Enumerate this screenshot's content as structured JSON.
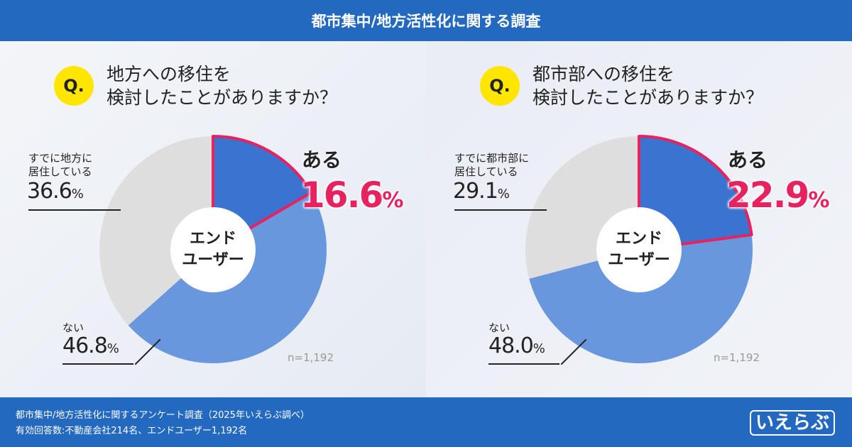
{
  "header": {
    "title": "都市集中/地方活性化に関する調査"
  },
  "colors": {
    "highlight": "#e8215f",
    "yes": "#3a73d0",
    "no": "#6897dd",
    "already": "#dedede",
    "brand": "#2469c0",
    "badge": "#ffe600"
  },
  "chart_data": [
    {
      "type": "pie",
      "title": "地方への移住を検討したことがありますか？",
      "q_badge": "Q.",
      "center_label": [
        "エンド",
        "ユーザー"
      ],
      "n": "n=1,192",
      "slices": [
        {
          "label": "ある",
          "value": 16.6
        },
        {
          "label": "ない",
          "value": 46.8
        },
        {
          "label": "すでに地方に居住している",
          "label_lines": [
            "すでに地方に",
            "居住している"
          ],
          "value": 36.6
        }
      ]
    },
    {
      "type": "pie",
      "title": "都市部への移住を検討したことがありますか？",
      "q_badge": "Q.",
      "center_label": [
        "エンド",
        "ユーザー"
      ],
      "n": "n=1,192",
      "slices": [
        {
          "label": "ある",
          "value": 22.9
        },
        {
          "label": "ない",
          "value": 48.0
        },
        {
          "label": "すでに都市部に居住している",
          "label_lines": [
            "すでに都市部に",
            "居住している"
          ],
          "value": 29.1
        }
      ]
    }
  ],
  "title_lines": [
    [
      "地方への移住を",
      "検討したことがありますか？"
    ],
    [
      "都市部への移住を",
      "検討したことがありますか？"
    ]
  ],
  "pct_text": [
    [
      "16.6",
      "46.8",
      "36.6"
    ],
    [
      "22.9",
      "48.0",
      "29.1"
    ]
  ],
  "unit": "%",
  "footer": {
    "line1": "都市集中/地方活性化に関するアンケート調査（2025年いえらぶ調べ）",
    "line2": "有効回答数:不動産会社214名、エンドユーザー1,192名",
    "logo": "いえらぶ"
  }
}
